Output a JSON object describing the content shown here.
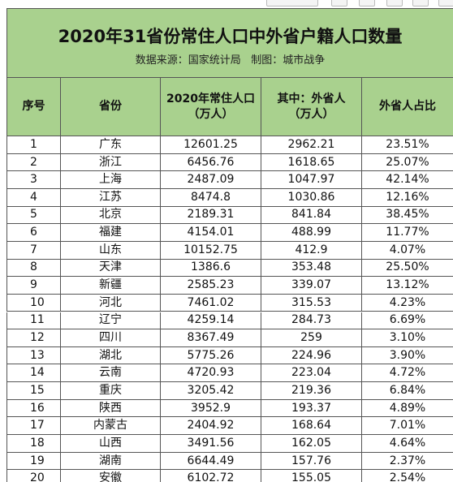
{
  "header": {
    "title": "2020年31省份常住人口中外省户籍人口数量",
    "subtitle": "数据来源：国家统计局   制图：城市战争"
  },
  "table": {
    "columns": [
      [
        "序号"
      ],
      [
        "省份"
      ],
      [
        "2020年常住人口",
        "（万人）"
      ],
      [
        "其中：外省人",
        "（万人）"
      ],
      [
        "外省人占比"
      ]
    ],
    "rows": [
      [
        "1",
        "广东",
        "12601.25",
        "2962.21",
        "23.51%"
      ],
      [
        "2",
        "浙江",
        "6456.76",
        "1618.65",
        "25.07%"
      ],
      [
        "3",
        "上海",
        "2487.09",
        "1047.97",
        "42.14%"
      ],
      [
        "4",
        "江苏",
        "8474.8",
        "1030.86",
        "12.16%"
      ],
      [
        "5",
        "北京",
        "2189.31",
        "841.84",
        "38.45%"
      ],
      [
        "6",
        "福建",
        "4154.01",
        "488.99",
        "11.77%"
      ],
      [
        "7",
        "山东",
        "10152.75",
        "412.9",
        "4.07%"
      ],
      [
        "8",
        "天津",
        "1386.6",
        "353.48",
        "25.50%"
      ],
      [
        "9",
        "新疆",
        "2585.23",
        "339.07",
        "13.12%"
      ],
      [
        "10",
        "河北",
        "7461.02",
        "315.53",
        "4.23%"
      ],
      [
        "11",
        "辽宁",
        "4259.14",
        "284.73",
        "6.69%"
      ],
      [
        "12",
        "四川",
        "8367.49",
        "259",
        "3.10%"
      ],
      [
        "13",
        "湖北",
        "5775.26",
        "224.96",
        "3.90%"
      ],
      [
        "14",
        "云南",
        "4720.93",
        "223.04",
        "4.72%"
      ],
      [
        "15",
        "重庆",
        "3205.42",
        "219.36",
        "6.84%"
      ],
      [
        "16",
        "陕西",
        "3952.9",
        "193.37",
        "4.89%"
      ],
      [
        "17",
        "内蒙古",
        "2404.92",
        "168.64",
        "7.01%"
      ],
      [
        "18",
        "山西",
        "3491.56",
        "162.05",
        "4.64%"
      ],
      [
        "19",
        "湖南",
        "6644.49",
        "157.76",
        "2.37%"
      ],
      [
        "20",
        "安徽",
        "6102.72",
        "155.05",
        "2.54%"
      ]
    ]
  }
}
